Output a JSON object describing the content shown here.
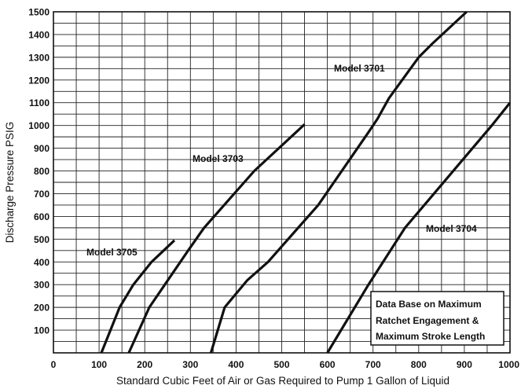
{
  "chart_data": {
    "type": "line",
    "xlabel": "Standard Cubic Feet of Air or Gas Required to Pump 1 Gallon of Liquid",
    "ylabel": "Discharge Pressure PSIG",
    "xlim": [
      0,
      1000
    ],
    "ylim": [
      0,
      1500
    ],
    "x_ticks": [
      0,
      100,
      200,
      300,
      400,
      500,
      600,
      700,
      800,
      900,
      1000
    ],
    "y_ticks": [
      100,
      200,
      300,
      400,
      500,
      600,
      700,
      800,
      900,
      1000,
      1100,
      1200,
      1300,
      1400,
      1500
    ],
    "grid": true,
    "series": [
      {
        "name": "Model 3705",
        "points": [
          [
            105,
            0
          ],
          [
            145,
            200
          ],
          [
            175,
            300
          ],
          [
            215,
            400
          ],
          [
            265,
            495
          ]
        ]
      },
      {
        "name": "Model 3703",
        "points": [
          [
            165,
            0
          ],
          [
            210,
            200
          ],
          [
            295,
            450
          ],
          [
            330,
            550
          ],
          [
            440,
            800
          ],
          [
            550,
            1005
          ]
        ]
      },
      {
        "name": "Model 3701",
        "points": [
          [
            345,
            0
          ],
          [
            375,
            200
          ],
          [
            425,
            320
          ],
          [
            470,
            400
          ],
          [
            580,
            650
          ],
          [
            690,
            970
          ],
          [
            710,
            1030
          ],
          [
            735,
            1120
          ],
          [
            800,
            1300
          ],
          [
            830,
            1360
          ],
          [
            905,
            1500
          ]
        ]
      },
      {
        "name": "Model 3704",
        "points": [
          [
            600,
            0
          ],
          [
            690,
            300
          ],
          [
            770,
            550
          ],
          [
            960,
            1000
          ],
          [
            1000,
            1100
          ]
        ]
      }
    ],
    "annotations": [
      "Data Base on Maximum",
      "Ratchet Engagement &",
      "Maximum Stroke Length"
    ]
  }
}
